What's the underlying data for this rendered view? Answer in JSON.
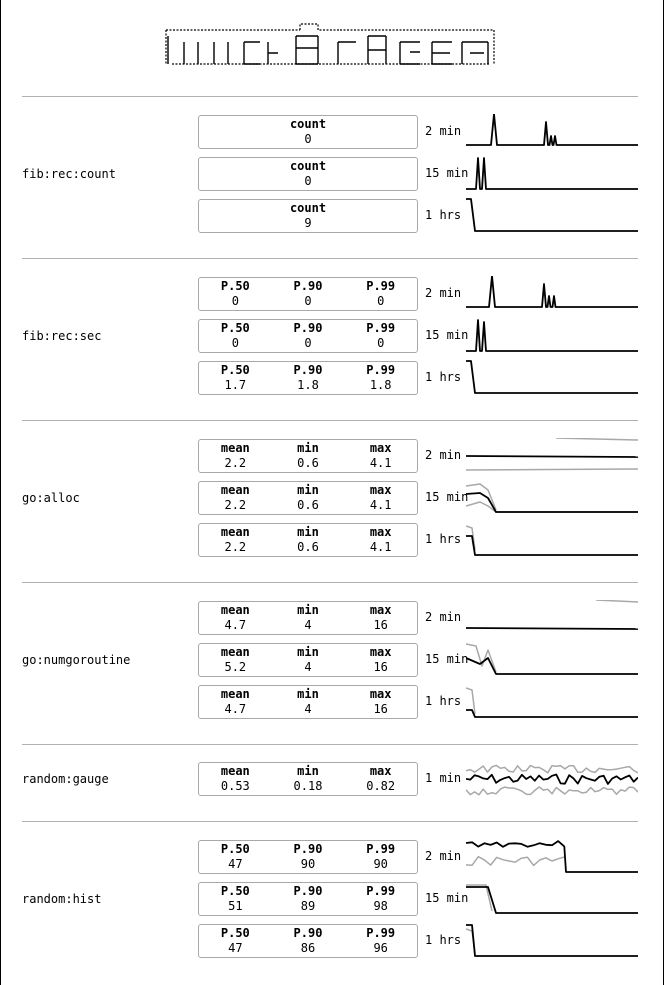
{
  "metrics": [
    {
      "name": "fib:rec:count",
      "rows": [
        {
          "interval": "2 min",
          "fields": [
            {
              "label": "count",
              "value": "0"
            }
          ]
        },
        {
          "interval": "15 min",
          "fields": [
            {
              "label": "count",
              "value": "0"
            }
          ]
        },
        {
          "interval": "1 hrs",
          "fields": [
            {
              "label": "count",
              "value": "9"
            }
          ]
        }
      ]
    },
    {
      "name": "fib:rec:sec",
      "rows": [
        {
          "interval": "2 min",
          "fields": [
            {
              "label": "P.50",
              "value": "0"
            },
            {
              "label": "P.90",
              "value": "0"
            },
            {
              "label": "P.99",
              "value": "0"
            }
          ]
        },
        {
          "interval": "15 min",
          "fields": [
            {
              "label": "P.50",
              "value": "0"
            },
            {
              "label": "P.90",
              "value": "0"
            },
            {
              "label": "P.99",
              "value": "0"
            }
          ]
        },
        {
          "interval": "1 hrs",
          "fields": [
            {
              "label": "P.50",
              "value": "1.7"
            },
            {
              "label": "P.90",
              "value": "1.8"
            },
            {
              "label": "P.99",
              "value": "1.8"
            }
          ]
        }
      ]
    },
    {
      "name": "go:alloc",
      "rows": [
        {
          "interval": "2 min",
          "fields": [
            {
              "label": "mean",
              "value": "2.2"
            },
            {
              "label": "min",
              "value": "0.6"
            },
            {
              "label": "max",
              "value": "4.1"
            }
          ]
        },
        {
          "interval": "15 min",
          "fields": [
            {
              "label": "mean",
              "value": "2.2"
            },
            {
              "label": "min",
              "value": "0.6"
            },
            {
              "label": "max",
              "value": "4.1"
            }
          ]
        },
        {
          "interval": "1 hrs",
          "fields": [
            {
              "label": "mean",
              "value": "2.2"
            },
            {
              "label": "min",
              "value": "0.6"
            },
            {
              "label": "max",
              "value": "4.1"
            }
          ]
        }
      ]
    },
    {
      "name": "go:numgoroutine",
      "rows": [
        {
          "interval": "2 min",
          "fields": [
            {
              "label": "mean",
              "value": "4.7"
            },
            {
              "label": "min",
              "value": "4"
            },
            {
              "label": "max",
              "value": "16"
            }
          ]
        },
        {
          "interval": "15 min",
          "fields": [
            {
              "label": "mean",
              "value": "5.2"
            },
            {
              "label": "min",
              "value": "4"
            },
            {
              "label": "max",
              "value": "16"
            }
          ]
        },
        {
          "interval": "1 hrs",
          "fields": [
            {
              "label": "mean",
              "value": "4.7"
            },
            {
              "label": "min",
              "value": "4"
            },
            {
              "label": "max",
              "value": "16"
            }
          ]
        }
      ]
    },
    {
      "name": "random:gauge",
      "rows": [
        {
          "interval": "1 min",
          "fields": [
            {
              "label": "mean",
              "value": "0.53"
            },
            {
              "label": "min",
              "value": "0.18"
            },
            {
              "label": "max",
              "value": "0.82"
            }
          ]
        }
      ]
    },
    {
      "name": "random:hist",
      "rows": [
        {
          "interval": "2 min",
          "fields": [
            {
              "label": "P.50",
              "value": "47"
            },
            {
              "label": "P.90",
              "value": "90"
            },
            {
              "label": "P.99",
              "value": "90"
            }
          ]
        },
        {
          "interval": "15 min",
          "fields": [
            {
              "label": "P.50",
              "value": "51"
            },
            {
              "label": "P.90",
              "value": "89"
            },
            {
              "label": "P.99",
              "value": "98"
            }
          ]
        },
        {
          "interval": "1 hrs",
          "fields": [
            {
              "label": "P.50",
              "value": "47"
            },
            {
              "label": "P.90",
              "value": "86"
            },
            {
              "label": "P.99",
              "value": "96"
            }
          ]
        }
      ]
    }
  ],
  "colors": {
    "primary_line": "#000000",
    "secondary_line": "#a8a8a8",
    "divider": "#b0b0b0",
    "box_border": "#a9a9a9"
  }
}
